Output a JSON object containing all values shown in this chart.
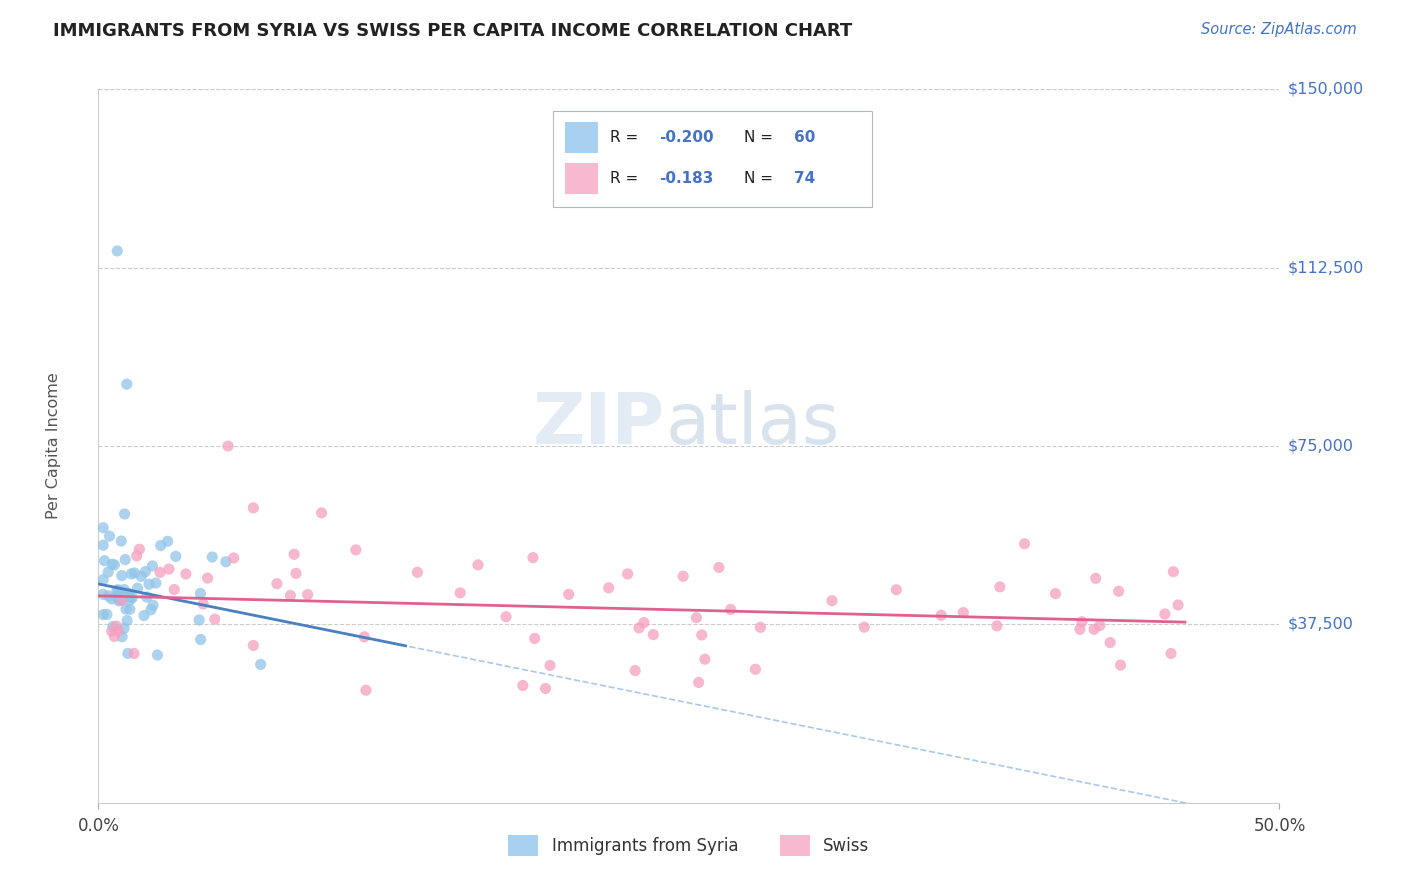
{
  "title": "IMMIGRANTS FROM SYRIA VS SWISS PER CAPITA INCOME CORRELATION CHART",
  "source": "Source: ZipAtlas.com",
  "ylabel": "Per Capita Income",
  "xlim": [
    0.0,
    0.5
  ],
  "ylim": [
    0,
    150000
  ],
  "yticks": [
    0,
    37500,
    75000,
    112500,
    150000
  ],
  "ytick_labels": [
    "",
    "$37,500",
    "$75,000",
    "$112,500",
    "$150,000"
  ],
  "xtick_labels": [
    "0.0%",
    "50.0%"
  ],
  "grid_color": "#cccccc",
  "bg_color": "#ffffff",
  "syria_dot_color": "#90c4e8",
  "swiss_dot_color": "#f5a0c0",
  "syria_line_color": "#4a7fc0",
  "swiss_line_color": "#e06090",
  "dashed_line_color": "#aac8e8",
  "ytick_color": "#4472c4",
  "title_color": "#222222",
  "source_color": "#4472c4",
  "label_color": "#555555",
  "legend_edge_color": "#b0b8c8",
  "legend_bg_color": "#ffffff",
  "syria_legend_color": "#a8d0f0",
  "swiss_legend_color": "#f8b8d0",
  "watermark_color": "#d0dce8",
  "syria_R": -0.2,
  "syria_N": 60,
  "swiss_R": -0.183,
  "swiss_N": 74,
  "syria_intercept": 46000,
  "syria_slope": -100000,
  "swiss_intercept": 43500,
  "swiss_slope": -12000
}
